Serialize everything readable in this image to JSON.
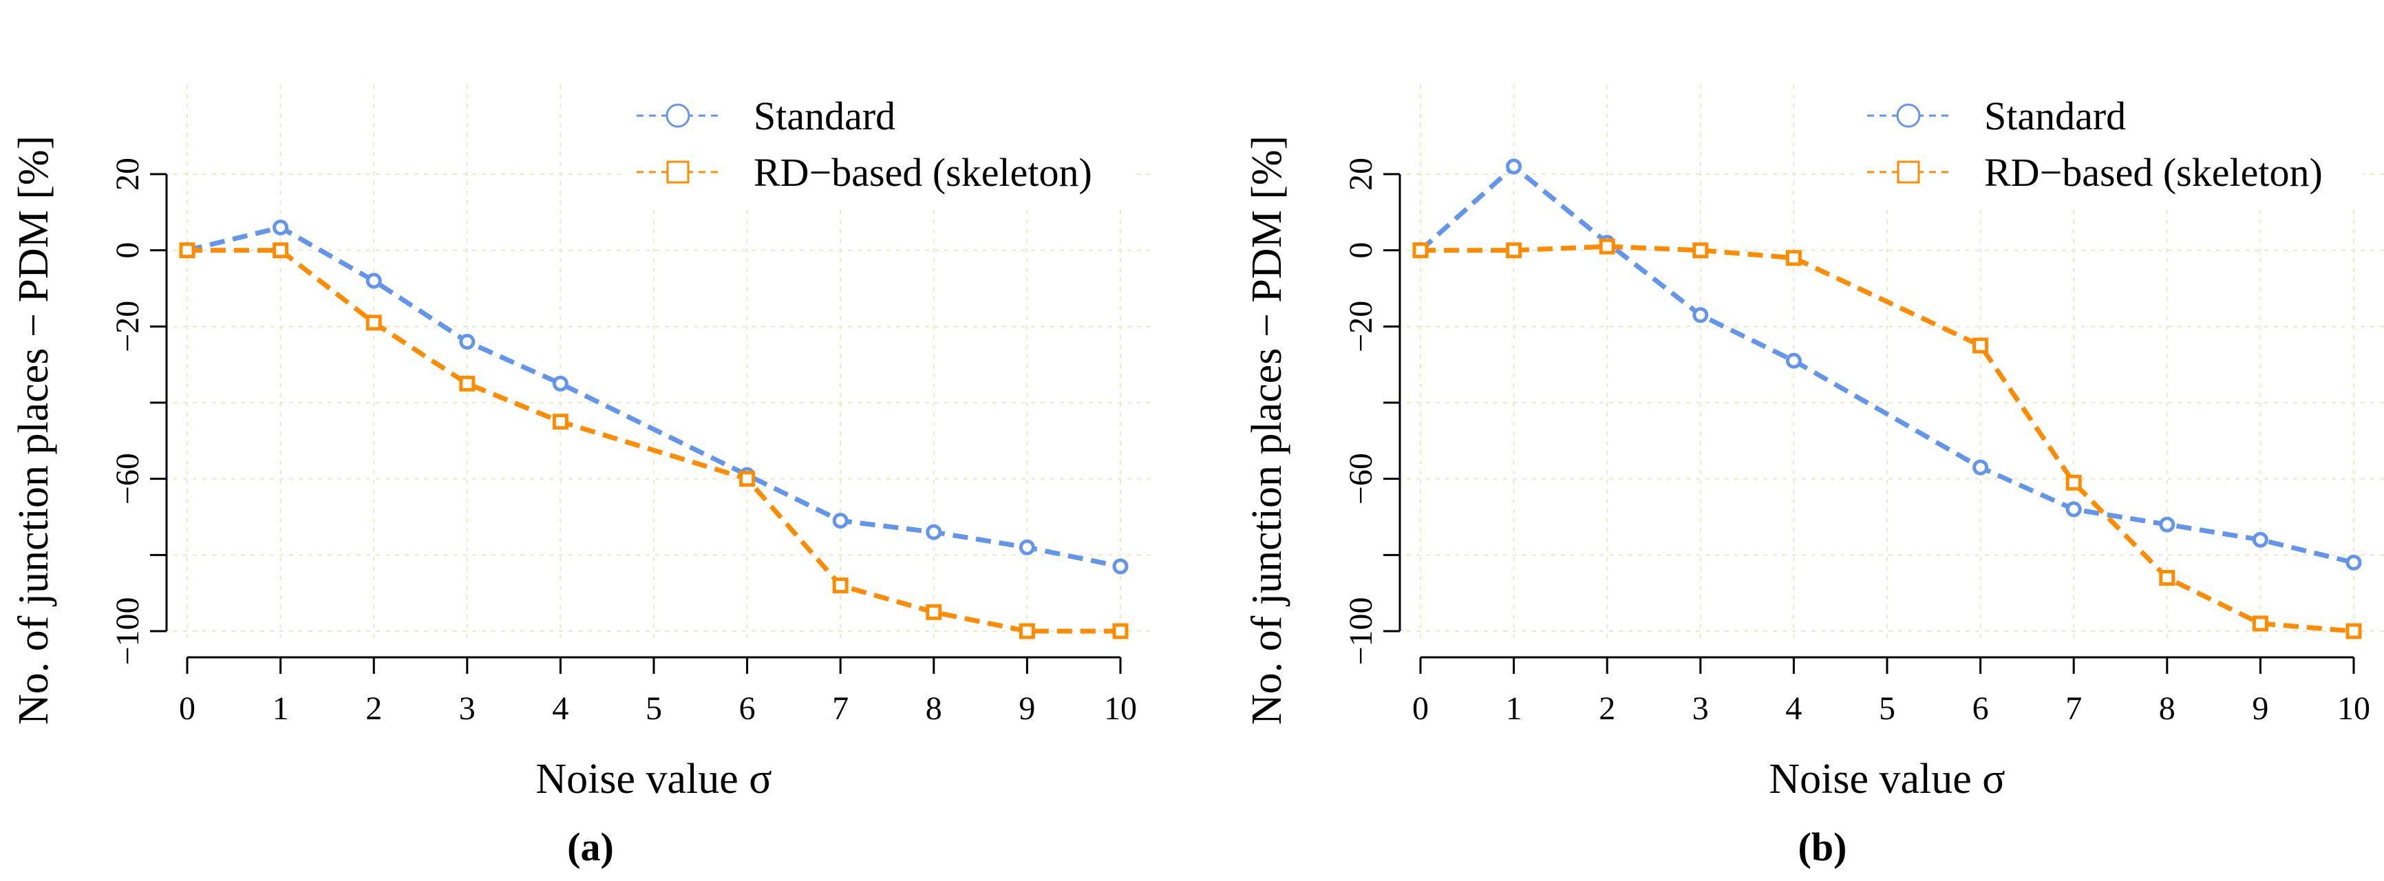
{
  "chart_data": [
    {
      "type": "line",
      "panel_label": "(a)",
      "title": "",
      "xlabel": "Noise value σ",
      "ylabel": "No. of junction places − PDM [%]",
      "xlim": [
        0,
        10
      ],
      "ylim": [
        -100,
        20
      ],
      "x_ticks": [
        0,
        1,
        2,
        3,
        4,
        5,
        6,
        7,
        8,
        9,
        10
      ],
      "x_tick_labels": [
        "0",
        "1",
        "2",
        "3",
        "4",
        "5",
        "6",
        "7",
        "8",
        "9",
        "10"
      ],
      "y_ticks": [
        20,
        0,
        -20,
        -40,
        -60,
        -80,
        -100
      ],
      "y_tick_labels": [
        "20",
        "0",
        "−20",
        "",
        "−60",
        "",
        "−100"
      ],
      "grid": true,
      "legend_position": "top-right",
      "series": [
        {
          "name": "Standard",
          "color": "#6495ED",
          "marker": "circle",
          "x": [
            0,
            1,
            2,
            3,
            4,
            6,
            7,
            8,
            9,
            10
          ],
          "values": [
            0,
            6,
            -8,
            -24,
            -35,
            -59,
            -71,
            -74,
            -78,
            -83
          ]
        },
        {
          "name": "RD−based (skeleton)",
          "color": "#FF8C00",
          "marker": "square",
          "x": [
            0,
            1,
            2,
            3,
            4,
            6,
            7,
            8,
            9,
            10
          ],
          "values": [
            0,
            0,
            -19,
            -35,
            -45,
            -60,
            -88,
            -95,
            -100,
            -100
          ]
        }
      ]
    },
    {
      "type": "line",
      "panel_label": "(b)",
      "title": "",
      "xlabel": "Noise value σ",
      "ylabel": "No. of junction places − PDM [%]",
      "xlim": [
        0,
        10
      ],
      "ylim": [
        -100,
        20
      ],
      "x_ticks": [
        0,
        1,
        2,
        3,
        4,
        5,
        6,
        7,
        8,
        9,
        10
      ],
      "x_tick_labels": [
        "0",
        "1",
        "2",
        "3",
        "4",
        "5",
        "6",
        "7",
        "8",
        "9",
        "10"
      ],
      "y_ticks": [
        20,
        0,
        -20,
        -40,
        -60,
        -80,
        -100
      ],
      "y_tick_labels": [
        "20",
        "0",
        "−20",
        "",
        "−60",
        "",
        "−100"
      ],
      "grid": true,
      "legend_position": "top-right",
      "series": [
        {
          "name": "Standard",
          "color": "#6495ED",
          "marker": "circle",
          "x": [
            0,
            1,
            2,
            3,
            4,
            6,
            7,
            8,
            9,
            10
          ],
          "values": [
            0,
            22,
            2,
            -17,
            -29,
            -57,
            -68,
            -72,
            -76,
            -82
          ]
        },
        {
          "name": "RD−based (skeleton)",
          "color": "#FF8C00",
          "marker": "square",
          "x": [
            0,
            1,
            2,
            3,
            4,
            6,
            7,
            8,
            9,
            10
          ],
          "values": [
            0,
            0,
            1,
            0,
            -2,
            -25,
            -61,
            -86,
            -98,
            -100
          ]
        }
      ]
    }
  ]
}
